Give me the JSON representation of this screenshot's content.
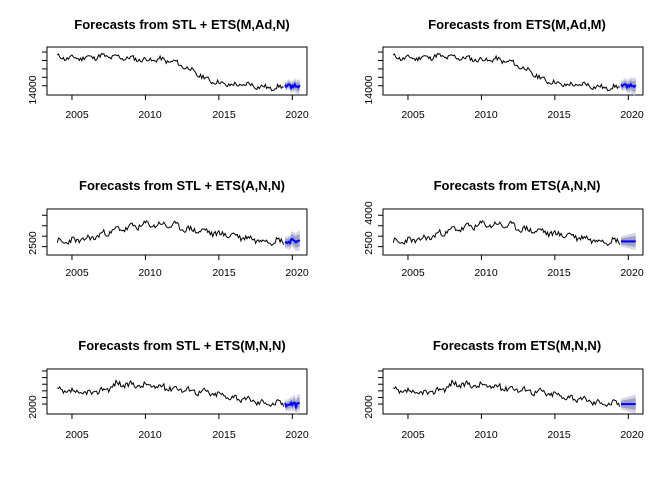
{
  "colors": {
    "observed": "#000000",
    "forecast_mean": "#0000ff",
    "interval_80": "#9ea0c8",
    "interval_95": "#d4d5e4",
    "axis": "#000000"
  },
  "chart_data": [
    {
      "type": "line",
      "title": "Forecasts from STL +  ETS(M,Ad,N)",
      "xlim": [
        2003.3,
        2021.0
      ],
      "xticks": [
        "2005",
        "2010",
        "2015",
        "2020"
      ],
      "ylim": [
        11800,
        23200
      ],
      "yticks": [
        "14000"
      ],
      "yminor": [
        16000,
        18000,
        20000,
        22000
      ],
      "series": [
        {
          "role": "observed",
          "anchors": [
            [
              2004.0,
              20800
            ],
            [
              2005.0,
              20500
            ],
            [
              2006.0,
              20700
            ],
            [
              2007.0,
              21000
            ],
            [
              2008.0,
              20800
            ],
            [
              2009.0,
              20500
            ],
            [
              2010.0,
              20100
            ],
            [
              2011.0,
              20200
            ],
            [
              2012.0,
              19600
            ],
            [
              2013.0,
              17900
            ],
            [
              2014.0,
              15800
            ],
            [
              2015.0,
              14600
            ],
            [
              2016.0,
              14100
            ],
            [
              2017.0,
              14300
            ],
            [
              2018.0,
              13600
            ],
            [
              2019.0,
              13500
            ],
            [
              2019.42,
              13800
            ]
          ],
          "amplitude": 1300,
          "seed": 11
        },
        {
          "role": "forecast",
          "mean": [
            [
              2019.5,
              14000
            ],
            [
              2020.5,
              13700
            ]
          ],
          "wiggle": 600,
          "band80": 1100,
          "band95": 1800
        }
      ]
    },
    {
      "type": "line",
      "title": "Forecasts from ETS(M,Ad,M)",
      "xlim": [
        2003.3,
        2021.0
      ],
      "xticks": [
        "2005",
        "2010",
        "2015",
        "2020"
      ],
      "ylim": [
        11800,
        23200
      ],
      "yticks": [
        "14000"
      ],
      "yminor": [
        16000,
        18000,
        20000,
        22000
      ],
      "series": [
        {
          "role": "observed",
          "anchors": [
            [
              2004.0,
              20800
            ],
            [
              2005.0,
              20500
            ],
            [
              2006.0,
              20700
            ],
            [
              2007.0,
              21000
            ],
            [
              2008.0,
              20800
            ],
            [
              2009.0,
              20500
            ],
            [
              2010.0,
              20100
            ],
            [
              2011.0,
              20200
            ],
            [
              2012.0,
              19600
            ],
            [
              2013.0,
              17900
            ],
            [
              2014.0,
              15800
            ],
            [
              2015.0,
              14600
            ],
            [
              2016.0,
              14100
            ],
            [
              2017.0,
              14300
            ],
            [
              2018.0,
              13600
            ],
            [
              2019.0,
              13500
            ],
            [
              2019.42,
              13800
            ]
          ],
          "amplitude": 1300,
          "seed": 11
        },
        {
          "role": "forecast",
          "mean": [
            [
              2019.5,
              14100
            ],
            [
              2020.5,
              13800
            ]
          ],
          "wiggle": 500,
          "band80": 1300,
          "band95": 2100
        }
      ]
    },
    {
      "type": "line",
      "title": "Forecasts from STL +  ETS(A,N,N)",
      "xlim": [
        2003.3,
        2021.0
      ],
      "xticks": [
        "2005",
        "2010",
        "2015",
        "2020"
      ],
      "ylim": [
        2100,
        4300
      ],
      "yticks": [
        "2500"
      ],
      "yminor": [
        3000,
        3500,
        4000
      ],
      "series": [
        {
          "role": "observed",
          "anchors": [
            [
              2004.0,
              2700
            ],
            [
              2006.0,
              2850
            ],
            [
              2008.0,
              3300
            ],
            [
              2010.0,
              3550
            ],
            [
              2011.0,
              3550
            ],
            [
              2012.0,
              3500
            ],
            [
              2013.0,
              3300
            ],
            [
              2014.0,
              3250
            ],
            [
              2015.0,
              3100
            ],
            [
              2016.0,
              3050
            ],
            [
              2017.0,
              2900
            ],
            [
              2018.0,
              2800
            ],
            [
              2019.42,
              2750
            ]
          ],
          "amplitude": 330,
          "seed": 23
        },
        {
          "role": "forecast",
          "mean": [
            [
              2019.5,
              2750
            ],
            [
              2020.5,
              2750
            ]
          ],
          "wiggle": 120,
          "band80": 300,
          "band95": 480
        }
      ]
    },
    {
      "type": "line",
      "title": "Forecasts from ETS(A,N,N)",
      "xlim": [
        2003.3,
        2021.0
      ],
      "xticks": [
        "2005",
        "2010",
        "2015",
        "2020"
      ],
      "ylim": [
        2100,
        4300
      ],
      "yticks": [
        "2500",
        "4000"
      ],
      "yminor": [
        3000,
        3500
      ],
      "series": [
        {
          "role": "observed",
          "anchors": [
            [
              2004.0,
              2700
            ],
            [
              2006.0,
              2850
            ],
            [
              2008.0,
              3300
            ],
            [
              2010.0,
              3550
            ],
            [
              2011.0,
              3550
            ],
            [
              2012.0,
              3500
            ],
            [
              2013.0,
              3300
            ],
            [
              2014.0,
              3250
            ],
            [
              2015.0,
              3100
            ],
            [
              2016.0,
              3050
            ],
            [
              2017.0,
              2900
            ],
            [
              2018.0,
              2800
            ],
            [
              2019.42,
              2750
            ]
          ],
          "amplitude": 330,
          "seed": 23
        },
        {
          "role": "forecast",
          "mean": [
            [
              2019.5,
              2750
            ],
            [
              2020.5,
              2750
            ]
          ],
          "wiggle": 0,
          "band80": 260,
          "band95": 420
        }
      ]
    },
    {
      "type": "line",
      "title": "Forecasts from STL +  ETS(M,N,N)",
      "xlim": [
        2003.3,
        2021.0
      ],
      "xticks": [
        "2005",
        "2010",
        "2015",
        "2020"
      ],
      "ylim": [
        1250,
        4650
      ],
      "yticks": [
        "2000"
      ],
      "yminor": [
        2500,
        3000,
        3500,
        4000,
        4500
      ],
      "series": [
        {
          "role": "observed",
          "anchors": [
            [
              2004.0,
              3000
            ],
            [
              2005.0,
              2900
            ],
            [
              2006.0,
              2800
            ],
            [
              2007.0,
              3000
            ],
            [
              2008.0,
              3500
            ],
            [
              2009.0,
              3450
            ],
            [
              2010.0,
              3400
            ],
            [
              2011.0,
              3300
            ],
            [
              2012.0,
              3200
            ],
            [
              2013.0,
              3050
            ],
            [
              2014.0,
              2900
            ],
            [
              2015.0,
              2700
            ],
            [
              2016.0,
              2500
            ],
            [
              2017.0,
              2300
            ],
            [
              2018.0,
              2100
            ],
            [
              2019.42,
              2000
            ]
          ],
          "amplitude": 520,
          "seed": 37
        },
        {
          "role": "forecast",
          "mean": [
            [
              2019.5,
              2000
            ],
            [
              2020.5,
              1950
            ]
          ],
          "wiggle": 200,
          "band80": 420,
          "band95": 700
        }
      ]
    },
    {
      "type": "line",
      "title": "Forecasts from ETS(M,N,N)",
      "xlim": [
        2003.3,
        2021.0
      ],
      "xticks": [
        "2005",
        "2010",
        "2015",
        "2020"
      ],
      "ylim": [
        1250,
        4650
      ],
      "yticks": [
        "2000"
      ],
      "yminor": [
        2500,
        3000,
        3500,
        4000,
        4500
      ],
      "series": [
        {
          "role": "observed",
          "anchors": [
            [
              2004.0,
              3000
            ],
            [
              2005.0,
              2900
            ],
            [
              2006.0,
              2800
            ],
            [
              2007.0,
              3000
            ],
            [
              2008.0,
              3500
            ],
            [
              2009.0,
              3450
            ],
            [
              2010.0,
              3400
            ],
            [
              2011.0,
              3300
            ],
            [
              2012.0,
              3200
            ],
            [
              2013.0,
              3050
            ],
            [
              2014.0,
              2900
            ],
            [
              2015.0,
              2700
            ],
            [
              2016.0,
              2500
            ],
            [
              2017.0,
              2300
            ],
            [
              2018.0,
              2100
            ],
            [
              2019.42,
              2000
            ]
          ],
          "amplitude": 520,
          "seed": 37
        },
        {
          "role": "forecast",
          "mean": [
            [
              2019.5,
              2000
            ],
            [
              2020.5,
              2000
            ]
          ],
          "wiggle": 0,
          "band80": 450,
          "band95": 720
        }
      ]
    }
  ]
}
